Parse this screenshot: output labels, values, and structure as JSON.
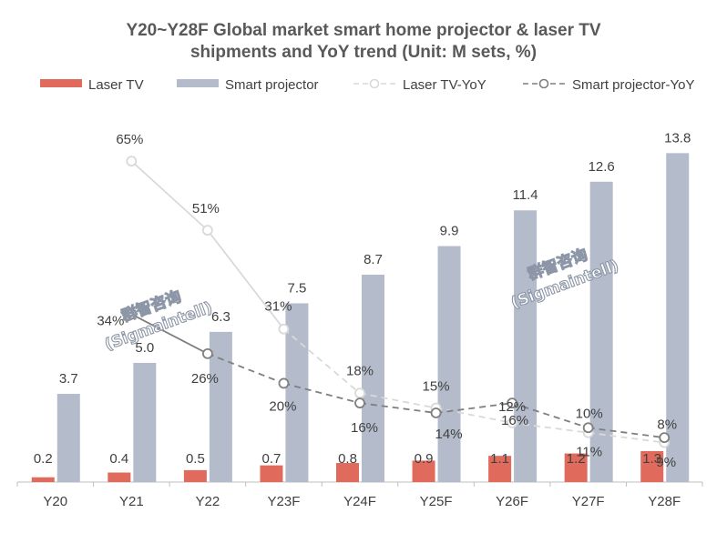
{
  "colors": {
    "laser_bar": "#e06b5d",
    "projector_bar": "#b4bccb",
    "laser_yoy_line": "#d9d9d9",
    "projector_yoy_line": "#7f7f7f",
    "title": "#595959",
    "text": "#404040",
    "axis": "#bfbfbf"
  },
  "watermark": {
    "line1": "群智咨询",
    "line2": "(Sigmaintell)"
  },
  "chart_data": {
    "type": "bar",
    "title": "Y20~Y28F Global market smart home  projector & laser TV shipments and YoY trend (Unit: M sets, %)",
    "title_lines": [
      "Y20~Y28F Global market smart home  projector & laser TV",
      "shipments and YoY trend (Unit: M sets, %)"
    ],
    "categories": [
      "Y20",
      "Y21",
      "Y22",
      "Y23F",
      "Y24F",
      "Y25F",
      "Y26F",
      "Y27F",
      "Y28F"
    ],
    "ylim": [
      0,
      14.5
    ],
    "y2lim": [
      0,
      70
    ],
    "legend_position": "top",
    "series": [
      {
        "name": "Laser TV",
        "kind": "bar",
        "values": [
          0.2,
          0.4,
          0.5,
          0.7,
          0.8,
          0.9,
          1.1,
          1.2,
          1.3
        ],
        "labels": [
          "0.2",
          "0.4",
          "0.5",
          "0.7",
          "0.8",
          "0.9",
          "1.1",
          "1.2",
          "1.3"
        ]
      },
      {
        "name": "Smart projector",
        "kind": "bar",
        "values": [
          3.7,
          5.0,
          6.3,
          7.5,
          8.7,
          9.9,
          11.4,
          12.6,
          13.8
        ],
        "labels": [
          "3.7",
          "5.0",
          "6.3",
          "7.5",
          "8.7",
          "9.9",
          "11.4",
          "12.6",
          "13.8"
        ]
      },
      {
        "name": "Laser TV-YoY",
        "kind": "line",
        "values": [
          null,
          65,
          51,
          31,
          18,
          15,
          12,
          10,
          8
        ],
        "labels": [
          "",
          "65%",
          "51%",
          "31%",
          "18%",
          "15%",
          "12%",
          "10%",
          "8%"
        ]
      },
      {
        "name": "Smart projector-YoY",
        "kind": "line",
        "values": [
          null,
          34,
          26,
          20,
          16,
          14,
          16,
          11,
          9
        ],
        "labels": [
          "",
          "34%",
          "26%",
          "20%",
          "16%",
          "14%",
          "16%",
          "11%",
          "9%"
        ]
      }
    ]
  }
}
